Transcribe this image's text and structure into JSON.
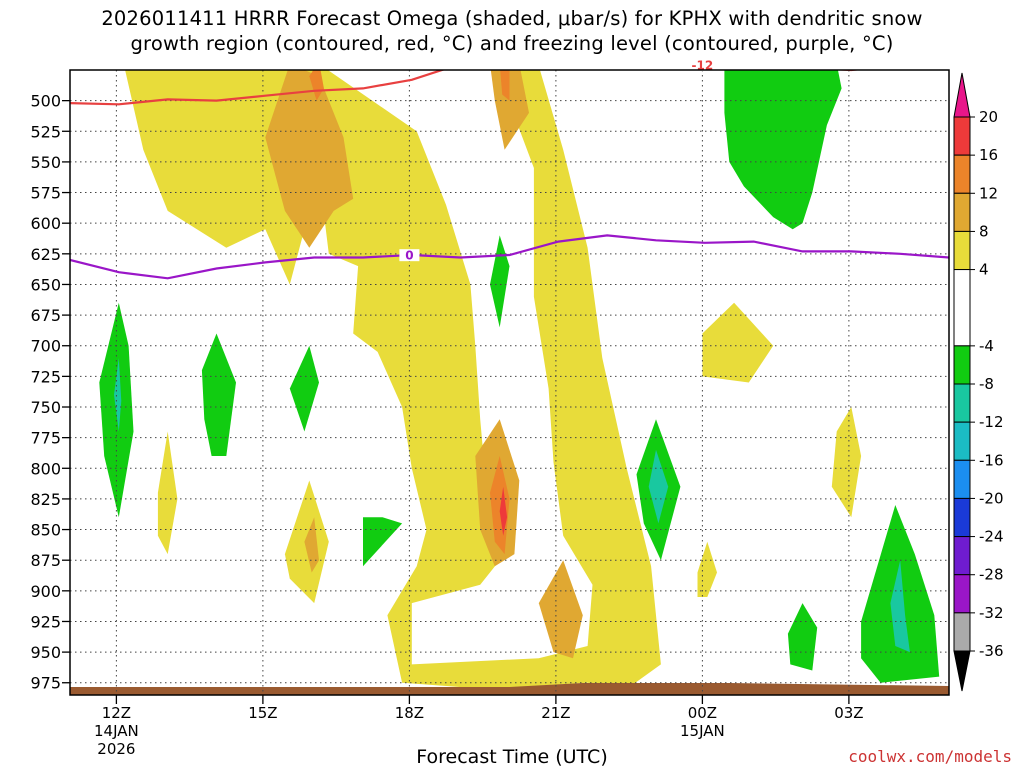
{
  "title": {
    "line1": "2026011411 HRRR Forecast Omega (shaded, μbar/s) for KPHX with dendritic snow",
    "line2": "growth region (contoured, red, °C) and freezing level (contoured, purple, °C)"
  },
  "xlabel": "Forecast Time (UTC)",
  "credit": "coolwx.com/models",
  "colors": {
    "bg": "#ffffff",
    "omega_4_8": "#e8dc3a",
    "omega_8_12": "#e0a832",
    "omega_12_16": "#ec842a",
    "omega_16_20": "#ee3a3a",
    "omega_m4_m8": "#11cc11",
    "omega_m8_m12": "#19c8a0",
    "omega_m12_m16": "#1bbcc4",
    "terrain": "#9a5a30",
    "dgz_contour": "#e84040",
    "freezing_contour": "#9a16c8"
  },
  "chart_data": {
    "type": "time-height-contour",
    "x_unit": "hours since 2026-01-14 10Z",
    "y_unit": "hPa",
    "xlim": [
      0,
      18
    ],
    "ylim": [
      985,
      475
    ],
    "y_ticks": [
      500,
      525,
      550,
      575,
      600,
      625,
      650,
      675,
      700,
      725,
      750,
      775,
      800,
      825,
      850,
      875,
      900,
      925,
      950,
      975
    ],
    "x_ticks": [
      {
        "hour": 0.95,
        "label": "12Z",
        "sub1": "14JAN",
        "sub2": "2026"
      },
      {
        "hour": 3.95,
        "label": "15Z",
        "sub1": "",
        "sub2": ""
      },
      {
        "hour": 6.95,
        "label": "18Z",
        "sub1": "",
        "sub2": ""
      },
      {
        "hour": 9.95,
        "label": "21Z",
        "sub1": "",
        "sub2": ""
      },
      {
        "hour": 12.95,
        "label": "00Z",
        "sub1": "15JAN",
        "sub2": ""
      },
      {
        "hour": 15.95,
        "label": "03Z",
        "sub1": "",
        "sub2": ""
      }
    ],
    "colorbar": {
      "labels": [
        "20",
        "16",
        "12",
        "8",
        "4",
        "-4",
        "-8",
        "-12",
        "-16",
        "-20",
        "-24",
        "-28",
        "-32",
        "-36"
      ],
      "bins": [
        {
          "low": 20,
          "high": 24,
          "color": "#e8168a"
        },
        {
          "low": 16,
          "high": 20,
          "color": "#ee3a3a"
        },
        {
          "low": 12,
          "high": 16,
          "color": "#ec842a"
        },
        {
          "low": 8,
          "high": 12,
          "color": "#e0a832"
        },
        {
          "low": 4,
          "high": 8,
          "color": "#e8dc3a"
        },
        {
          "low": -4,
          "high": 4,
          "color": "#ffffff"
        },
        {
          "low": -8,
          "high": -4,
          "color": "#11cc11"
        },
        {
          "low": -12,
          "high": -8,
          "color": "#19c8a0"
        },
        {
          "low": -16,
          "high": -12,
          "color": "#1bbcc4"
        },
        {
          "low": -20,
          "high": -16,
          "color": "#1b8ef0"
        },
        {
          "low": -24,
          "high": -20,
          "color": "#1a3ad8"
        },
        {
          "low": -28,
          "high": -24,
          "color": "#6f1cd0"
        },
        {
          "low": -32,
          "high": -28,
          "color": "#9a16c8"
        },
        {
          "low": -36,
          "high": -32,
          "color": "#aaaaaa"
        },
        {
          "low": -40,
          "high": -36,
          "color": "#000000"
        }
      ]
    },
    "freezing_level": {
      "label": "0",
      "label_hour": 6.95,
      "points": [
        [
          0,
          630
        ],
        [
          1,
          640
        ],
        [
          2,
          645
        ],
        [
          3,
          637
        ],
        [
          4,
          632
        ],
        [
          5,
          628
        ],
        [
          6,
          628
        ],
        [
          7,
          626
        ],
        [
          8,
          628
        ],
        [
          9,
          626
        ],
        [
          10,
          615
        ],
        [
          11,
          610
        ],
        [
          12,
          614
        ],
        [
          13,
          616
        ],
        [
          14,
          615
        ],
        [
          15,
          623
        ],
        [
          16,
          623
        ],
        [
          17,
          625
        ],
        [
          18,
          628
        ]
      ]
    },
    "dgz_minus12": {
      "label": "-12",
      "label_hour": 12.95,
      "points": [
        [
          0,
          502
        ],
        [
          1,
          503
        ],
        [
          2,
          499
        ],
        [
          3,
          500
        ],
        [
          4,
          496
        ],
        [
          5,
          492
        ],
        [
          6,
          490
        ],
        [
          7,
          483
        ],
        [
          8,
          470
        ],
        [
          9,
          470
        ],
        [
          10,
          474
        ],
        [
          11,
          474
        ],
        [
          12,
          472
        ],
        [
          13,
          471
        ],
        [
          14,
          473
        ],
        [
          15,
          473
        ],
        [
          16,
          475
        ],
        [
          17,
          471
        ],
        [
          18,
          469
        ]
      ]
    },
    "shaded_regions": [
      {
        "level": 4,
        "points": [
          [
            1.1,
            470
          ],
          [
            5.1,
            470
          ],
          [
            7.1,
            525
          ],
          [
            7.7,
            585
          ],
          [
            8.2,
            650
          ],
          [
            8.3,
            700
          ],
          [
            8.4,
            760
          ],
          [
            8.5,
            805
          ],
          [
            9.0,
            840
          ],
          [
            8.9,
            870
          ],
          [
            8.4,
            895
          ],
          [
            7.0,
            910
          ],
          [
            7.0,
            960
          ],
          [
            9.6,
            955
          ],
          [
            10.6,
            945
          ],
          [
            10.7,
            895
          ],
          [
            10.1,
            855
          ],
          [
            9.9,
            795
          ],
          [
            9.8,
            735
          ],
          [
            9.5,
            660
          ],
          [
            9.5,
            555
          ],
          [
            8.7,
            470
          ],
          [
            8.6,
            458
          ],
          [
            9.5,
            458
          ],
          [
            10.1,
            540
          ],
          [
            10.6,
            620
          ],
          [
            10.9,
            710
          ],
          [
            11.4,
            800
          ],
          [
            11.9,
            880
          ],
          [
            12.1,
            960
          ],
          [
            11.4,
            980
          ],
          [
            10.6,
            975
          ],
          [
            8.5,
            980
          ],
          [
            6.8,
            975
          ],
          [
            6.5,
            920
          ],
          [
            7.1,
            880
          ],
          [
            7.3,
            850
          ],
          [
            7.0,
            800
          ],
          [
            6.8,
            750
          ],
          [
            6.3,
            705
          ],
          [
            5.8,
            690
          ],
          [
            5.9,
            635
          ],
          [
            5.3,
            625
          ],
          [
            5.1,
            560
          ],
          [
            4.5,
            650
          ],
          [
            4.0,
            605
          ],
          [
            3.2,
            620
          ],
          [
            2.0,
            590
          ],
          [
            1.5,
            540
          ],
          [
            1.1,
            470
          ]
        ]
      },
      {
        "level": 4,
        "points": [
          [
            12.95,
            690
          ],
          [
            13.6,
            665
          ],
          [
            14.4,
            700
          ],
          [
            13.9,
            730
          ],
          [
            12.95,
            725
          ]
        ]
      },
      {
        "level": 4,
        "points": [
          [
            15.7,
            770
          ],
          [
            16.0,
            750
          ],
          [
            16.2,
            790
          ],
          [
            16.0,
            840
          ],
          [
            15.6,
            815
          ]
        ]
      },
      {
        "level": 4,
        "points": [
          [
            12.85,
            885
          ],
          [
            13.05,
            860
          ],
          [
            13.25,
            885
          ],
          [
            13.05,
            905
          ],
          [
            12.85,
            905
          ]
        ]
      },
      {
        "level": 4,
        "points": [
          [
            1.8,
            820
          ],
          [
            2.0,
            770
          ],
          [
            2.2,
            825
          ],
          [
            2.0,
            870
          ],
          [
            1.8,
            855
          ]
        ]
      },
      {
        "level": 4,
        "points": [
          [
            4.4,
            870
          ],
          [
            4.9,
            810
          ],
          [
            5.3,
            860
          ],
          [
            5.0,
            910
          ],
          [
            4.5,
            890
          ]
        ]
      },
      {
        "level": 8,
        "points": [
          [
            4.0,
            530
          ],
          [
            4.5,
            470
          ],
          [
            5.1,
            480
          ],
          [
            5.6,
            530
          ],
          [
            5.8,
            580
          ],
          [
            5.4,
            590
          ],
          [
            4.9,
            620
          ],
          [
            4.4,
            590
          ],
          [
            4.2,
            560
          ]
        ]
      },
      {
        "level": 8,
        "points": [
          [
            8.6,
            470
          ],
          [
            9.2,
            470
          ],
          [
            9.4,
            510
          ],
          [
            8.9,
            540
          ],
          [
            8.7,
            500
          ]
        ]
      },
      {
        "level": 8,
        "points": [
          [
            8.3,
            790
          ],
          [
            8.8,
            760
          ],
          [
            9.2,
            810
          ],
          [
            9.1,
            870
          ],
          [
            8.7,
            880
          ],
          [
            8.4,
            850
          ]
        ]
      },
      {
        "level": 8,
        "points": [
          [
            9.6,
            910
          ],
          [
            10.1,
            875
          ],
          [
            10.5,
            920
          ],
          [
            10.3,
            955
          ],
          [
            9.9,
            950
          ]
        ]
      },
      {
        "level": 8,
        "points": [
          [
            4.8,
            860
          ],
          [
            5.0,
            840
          ],
          [
            5.1,
            875
          ],
          [
            4.95,
            885
          ]
        ]
      },
      {
        "level": 12,
        "points": [
          [
            4.9,
            480
          ],
          [
            5.1,
            468
          ],
          [
            5.2,
            490
          ],
          [
            5.05,
            500
          ]
        ]
      },
      {
        "level": 12,
        "points": [
          [
            8.8,
            470
          ],
          [
            9.0,
            475
          ],
          [
            9.0,
            500
          ],
          [
            8.85,
            495
          ]
        ]
      },
      {
        "level": 12,
        "points": [
          [
            8.6,
            820
          ],
          [
            8.8,
            790
          ],
          [
            9.0,
            825
          ],
          [
            8.9,
            870
          ],
          [
            8.7,
            860
          ]
        ]
      },
      {
        "level": 16,
        "points": [
          [
            8.8,
            835
          ],
          [
            8.87,
            815
          ],
          [
            8.95,
            840
          ],
          [
            8.87,
            855
          ]
        ]
      },
      {
        "level": -4,
        "points": [
          [
            13.4,
            470
          ],
          [
            15.7,
            470
          ],
          [
            15.8,
            490
          ],
          [
            15.5,
            520
          ],
          [
            15.2,
            575
          ],
          [
            15.0,
            600
          ],
          [
            14.8,
            605
          ],
          [
            14.4,
            595
          ],
          [
            13.8,
            570
          ],
          [
            13.5,
            550
          ],
          [
            13.4,
            510
          ]
        ]
      },
      {
        "level": -4,
        "points": [
          [
            0.6,
            730
          ],
          [
            1.0,
            665
          ],
          [
            1.2,
            700
          ],
          [
            1.3,
            770
          ],
          [
            1.0,
            840
          ],
          [
            0.7,
            790
          ]
        ]
      },
      {
        "level": -4,
        "points": [
          [
            2.7,
            720
          ],
          [
            3.0,
            690
          ],
          [
            3.4,
            730
          ],
          [
            3.2,
            790
          ],
          [
            2.9,
            790
          ],
          [
            2.75,
            760
          ]
        ]
      },
      {
        "level": -4,
        "points": [
          [
            4.5,
            735
          ],
          [
            4.9,
            700
          ],
          [
            5.1,
            730
          ],
          [
            4.8,
            770
          ]
        ]
      },
      {
        "level": -4,
        "points": [
          [
            6.0,
            840
          ],
          [
            6.4,
            840
          ],
          [
            6.8,
            845
          ],
          [
            6.0,
            880
          ]
        ]
      },
      {
        "level": -4,
        "points": [
          [
            8.6,
            650
          ],
          [
            8.8,
            610
          ],
          [
            9.0,
            635
          ],
          [
            8.8,
            685
          ]
        ]
      },
      {
        "level": -4,
        "points": [
          [
            11.6,
            805
          ],
          [
            12.0,
            760
          ],
          [
            12.5,
            815
          ],
          [
            12.1,
            875
          ],
          [
            11.75,
            845
          ]
        ]
      },
      {
        "level": -4,
        "points": [
          [
            14.7,
            935
          ],
          [
            15.0,
            910
          ],
          [
            15.3,
            930
          ],
          [
            15.2,
            965
          ],
          [
            14.75,
            960
          ]
        ]
      },
      {
        "level": -4,
        "points": [
          [
            16.2,
            925
          ],
          [
            16.9,
            830
          ],
          [
            17.3,
            870
          ],
          [
            17.7,
            920
          ],
          [
            17.8,
            970
          ],
          [
            16.6,
            975
          ],
          [
            16.2,
            955
          ]
        ]
      },
      {
        "level": -8,
        "points": [
          [
            0.9,
            740
          ],
          [
            1.0,
            710
          ],
          [
            1.05,
            745
          ],
          [
            1.0,
            770
          ]
        ]
      },
      {
        "level": -8,
        "points": [
          [
            11.85,
            815
          ],
          [
            12.0,
            785
          ],
          [
            12.25,
            815
          ],
          [
            12.05,
            845
          ]
        ]
      },
      {
        "level": -8,
        "points": [
          [
            16.8,
            910
          ],
          [
            17.0,
            875
          ],
          [
            17.1,
            920
          ],
          [
            17.2,
            950
          ],
          [
            16.9,
            945
          ]
        ]
      }
    ]
  }
}
